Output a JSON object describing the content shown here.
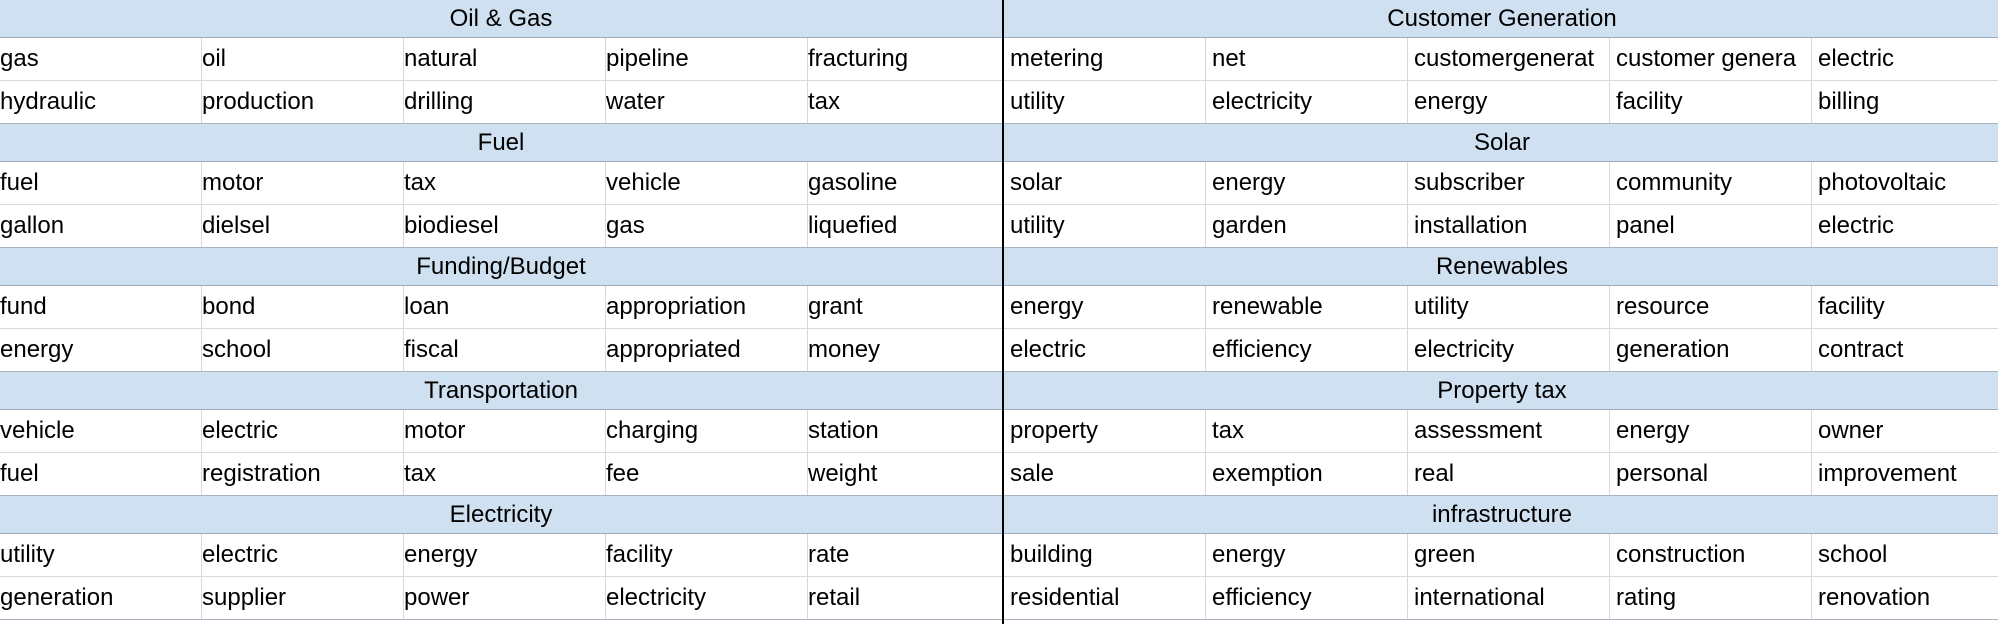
{
  "left_panel": {
    "sections": [
      {
        "title": "Oil & Gas",
        "rows": [
          [
            "gas",
            "oil",
            "natural",
            "pipeline",
            "fracturing"
          ],
          [
            "hydraulic",
            "production",
            "drilling",
            "water",
            "tax"
          ]
        ]
      },
      {
        "title": "Fuel",
        "rows": [
          [
            "fuel",
            "motor",
            "tax",
            "vehicle",
            "gasoline"
          ],
          [
            "gallon",
            "dielsel",
            "biodiesel",
            "gas",
            "liquefied"
          ]
        ]
      },
      {
        "title": "Funding/Budget",
        "rows": [
          [
            "fund",
            "bond",
            "loan",
            "appropriation",
            "grant"
          ],
          [
            "energy",
            "school",
            "fiscal",
            "appropriated",
            "money"
          ]
        ]
      },
      {
        "title": "Transportation",
        "rows": [
          [
            "vehicle",
            "electric",
            "motor",
            "charging",
            "station"
          ],
          [
            "fuel",
            "registration",
            "tax",
            "fee",
            "weight"
          ]
        ]
      },
      {
        "title": "Electricity",
        "rows": [
          [
            "utility",
            "electric",
            "energy",
            "facility",
            "rate"
          ],
          [
            "generation",
            "supplier",
            "power",
            "electricity",
            "retail"
          ]
        ]
      }
    ]
  },
  "right_panel": {
    "sections": [
      {
        "title": "Customer Generation",
        "rows": [
          [
            "metering",
            "net",
            "customergenerat",
            "customer genera",
            "electric"
          ],
          [
            "utility",
            "electricity",
            "energy",
            "facility",
            "billing"
          ]
        ]
      },
      {
        "title": "Solar",
        "rows": [
          [
            "solar",
            "energy",
            "subscriber",
            "community",
            "photovoltaic"
          ],
          [
            "utility",
            "garden",
            "installation",
            "panel",
            "electric"
          ]
        ]
      },
      {
        "title": "Renewables",
        "rows": [
          [
            "energy",
            "renewable",
            "utility",
            "resource",
            "facility"
          ],
          [
            "electric",
            "efficiency",
            "electricity",
            "generation",
            "contract"
          ]
        ]
      },
      {
        "title": "Property tax",
        "rows": [
          [
            "property",
            "tax",
            "assessment",
            "energy",
            "owner"
          ],
          [
            "sale",
            "exemption",
            "real",
            "personal",
            "improvement"
          ]
        ]
      },
      {
        "title": "infrastructure",
        "rows": [
          [
            "building",
            "energy",
            "green",
            "construction",
            "school"
          ],
          [
            "residential",
            "efficiency",
            "international",
            "rating",
            "renovation"
          ]
        ]
      }
    ]
  }
}
